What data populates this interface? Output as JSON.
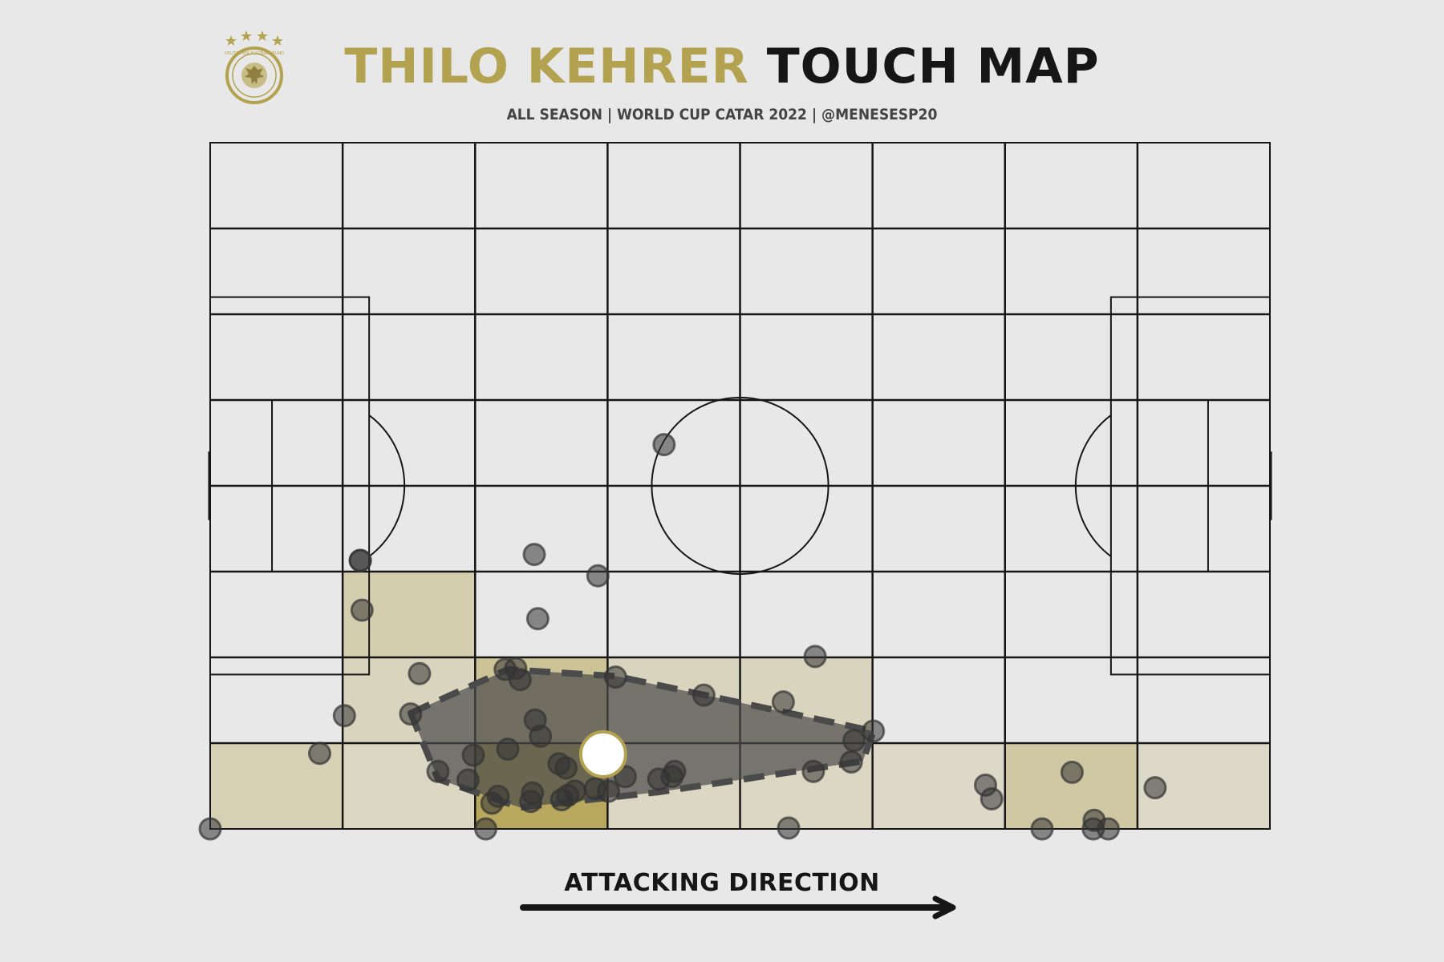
{
  "header": {
    "title_player": "THILO KEHRER",
    "title_suffix": "TOUCH MAP",
    "subtitle": "ALL SEASON | WORLD CUP CATAR 2022 | @MENESESP20",
    "logo_text": "DEUTSCHER FUSSBALL-BUND"
  },
  "footer": {
    "attacking_label": "ATTACKING DIRECTION"
  },
  "colors": {
    "background": "#e8e8e8",
    "accent_gold": "#b3a250",
    "line": "#161616",
    "point": "#333333",
    "hull": "#4a4a4a",
    "average_marker": "#ffffff"
  },
  "chart_data": {
    "type": "scatter",
    "pitch": {
      "length": 120,
      "width": 80,
      "orientation": "attacking left to right"
    },
    "grid": {
      "columns": 8,
      "rows": 8
    },
    "heatmap_cells": [
      {
        "col": 1,
        "row": 5,
        "intensity": 0.35
      },
      {
        "col": 1,
        "row": 6,
        "intensity": 0.25
      },
      {
        "col": 1,
        "row": 7,
        "intensity": 0.2
      },
      {
        "col": 0,
        "row": 7,
        "intensity": 0.3
      },
      {
        "col": 2,
        "row": 6,
        "intensity": 0.55
      },
      {
        "col": 2,
        "row": 7,
        "intensity": 1.0
      },
      {
        "col": 3,
        "row": 6,
        "intensity": 0.25
      },
      {
        "col": 3,
        "row": 7,
        "intensity": 0.2
      },
      {
        "col": 4,
        "row": 6,
        "intensity": 0.25
      },
      {
        "col": 4,
        "row": 7,
        "intensity": 0.2
      },
      {
        "col": 5,
        "row": 7,
        "intensity": 0.15
      },
      {
        "col": 6,
        "row": 7,
        "intensity": 0.45
      },
      {
        "col": 7,
        "row": 7,
        "intensity": 0.15
      }
    ],
    "touches": [
      [
        0,
        80
      ],
      [
        12.4,
        71.2
      ],
      [
        15.2,
        66.8
      ],
      [
        17,
        48.7
      ],
      [
        17.2,
        54.5
      ],
      [
        22.7,
        66.6
      ],
      [
        25.8,
        73.3
      ],
      [
        29.2,
        74.3
      ],
      [
        29.8,
        71.4
      ],
      [
        31.2,
        80
      ],
      [
        33.7,
        70.7
      ],
      [
        31.9,
        77
      ],
      [
        32.6,
        76.2
      ],
      [
        33.4,
        61.4
      ],
      [
        35.1,
        62.6
      ],
      [
        36.7,
        48
      ],
      [
        37.1,
        55.5
      ],
      [
        36.3,
        76.8
      ],
      [
        36.5,
        75.8
      ],
      [
        36.8,
        67.3
      ],
      [
        37.4,
        69.2
      ],
      [
        39.5,
        72.4
      ],
      [
        39.8,
        76.6
      ],
      [
        40.3,
        72.9
      ],
      [
        40.5,
        76.1
      ],
      [
        41.3,
        75.6
      ],
      [
        43.6,
        75.3
      ],
      [
        45.1,
        75.6
      ],
      [
        43.9,
        50.5
      ],
      [
        45.9,
        62.3
      ],
      [
        47,
        73.9
      ],
      [
        51.4,
        35.2
      ],
      [
        50.8,
        74.2
      ],
      [
        52.3,
        73.9
      ],
      [
        55.9,
        64.4
      ],
      [
        52.6,
        73.3
      ],
      [
        65.5,
        79.9
      ],
      [
        64.9,
        65.2
      ],
      [
        68.5,
        59.9
      ],
      [
        68.3,
        73.3
      ],
      [
        72.9,
        69.7
      ],
      [
        72.6,
        72.2
      ],
      [
        75.1,
        68.6
      ],
      [
        87.8,
        74.9
      ],
      [
        88.5,
        76.5
      ],
      [
        97.6,
        73.4
      ],
      [
        94.2,
        80
      ],
      [
        100.1,
        79
      ],
      [
        100,
        80
      ],
      [
        101.7,
        80
      ],
      [
        107,
        75.2
      ],
      [
        17,
        48.7
      ],
      [
        23.7,
        61.9
      ],
      [
        34.6,
        61.3
      ]
    ],
    "average_position": [
      44.5,
      71.3
    ],
    "convex_hull": [
      [
        22.7,
        66.5
      ],
      [
        33.7,
        61.4
      ],
      [
        46,
        62.2
      ],
      [
        75.1,
        68.6
      ],
      [
        73.9,
        72.1
      ],
      [
        50.8,
        75.7
      ],
      [
        35.1,
        77.5
      ],
      [
        25.8,
        74.2
      ]
    ]
  }
}
